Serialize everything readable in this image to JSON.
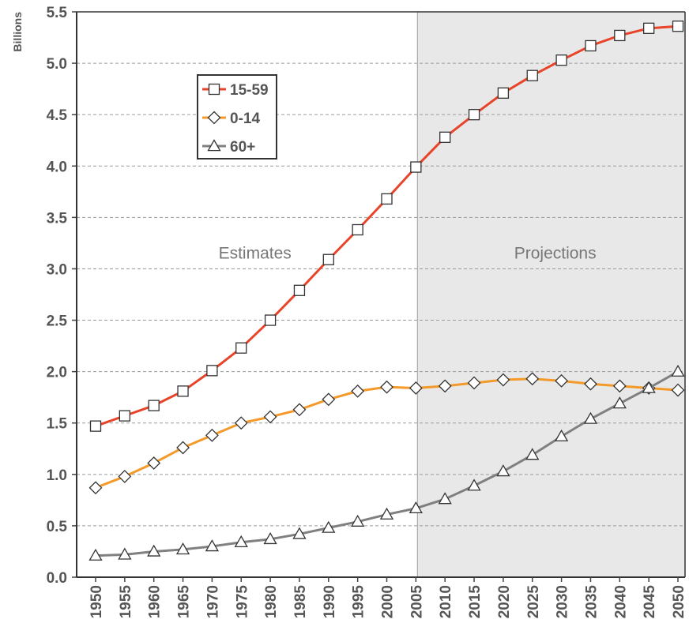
{
  "chart_data": {
    "type": "line",
    "title": "",
    "xlabel": "",
    "ylabel": "Billions",
    "ylim": [
      0,
      5.5
    ],
    "y_ticks": [
      "0.0",
      "0.5",
      "1.0",
      "1.5",
      "2.0",
      "2.5",
      "3.0",
      "3.5",
      "4.0",
      "4.5",
      "5.0",
      "5.5"
    ],
    "y_tick_values": [
      0,
      0.5,
      1.0,
      1.5,
      2.0,
      2.5,
      3.0,
      3.5,
      4.0,
      4.5,
      5.0,
      5.5
    ],
    "x": [
      1950,
      1955,
      1960,
      1965,
      1970,
      1975,
      1980,
      1985,
      1990,
      1995,
      2000,
      2005,
      2010,
      2015,
      2020,
      2025,
      2030,
      2035,
      2040,
      2045,
      2050
    ],
    "x_tick_labels": [
      "1950",
      "1955",
      "1960",
      "1965",
      "1970",
      "1975",
      "1980",
      "1985",
      "1990",
      "1995",
      "2000",
      "2005",
      "2010",
      "2015",
      "2020",
      "2025",
      "2030",
      "2035",
      "2040",
      "2045",
      "2050"
    ],
    "grid": true,
    "legend_position": "top-left",
    "series": [
      {
        "name": "15-59",
        "marker": "square",
        "color": "#e8442a",
        "values": [
          1.47,
          1.57,
          1.67,
          1.81,
          2.01,
          2.23,
          2.5,
          2.79,
          3.09,
          3.38,
          3.68,
          3.99,
          4.28,
          4.5,
          4.71,
          4.88,
          5.03,
          5.17,
          5.27,
          5.34,
          5.36
        ]
      },
      {
        "name": "0-14",
        "marker": "diamond",
        "color": "#f39a2b",
        "values": [
          0.87,
          0.98,
          1.11,
          1.26,
          1.38,
          1.5,
          1.56,
          1.63,
          1.73,
          1.81,
          1.85,
          1.84,
          1.86,
          1.89,
          1.92,
          1.93,
          1.91,
          1.88,
          1.86,
          1.84,
          1.82
        ]
      },
      {
        "name": "60+",
        "marker": "triangle",
        "color": "#808080",
        "values": [
          0.21,
          0.22,
          0.25,
          0.27,
          0.3,
          0.34,
          0.37,
          0.42,
          0.48,
          0.54,
          0.61,
          0.67,
          0.76,
          0.89,
          1.03,
          1.19,
          1.37,
          1.54,
          1.69,
          1.84,
          2.0
        ]
      }
    ],
    "annotations": [
      {
        "text": "Estimates",
        "region": "estimates"
      },
      {
        "text": "Projections",
        "region": "projections"
      }
    ],
    "projection_start_x": 2005,
    "projection_shade": "#e8e8e8"
  }
}
